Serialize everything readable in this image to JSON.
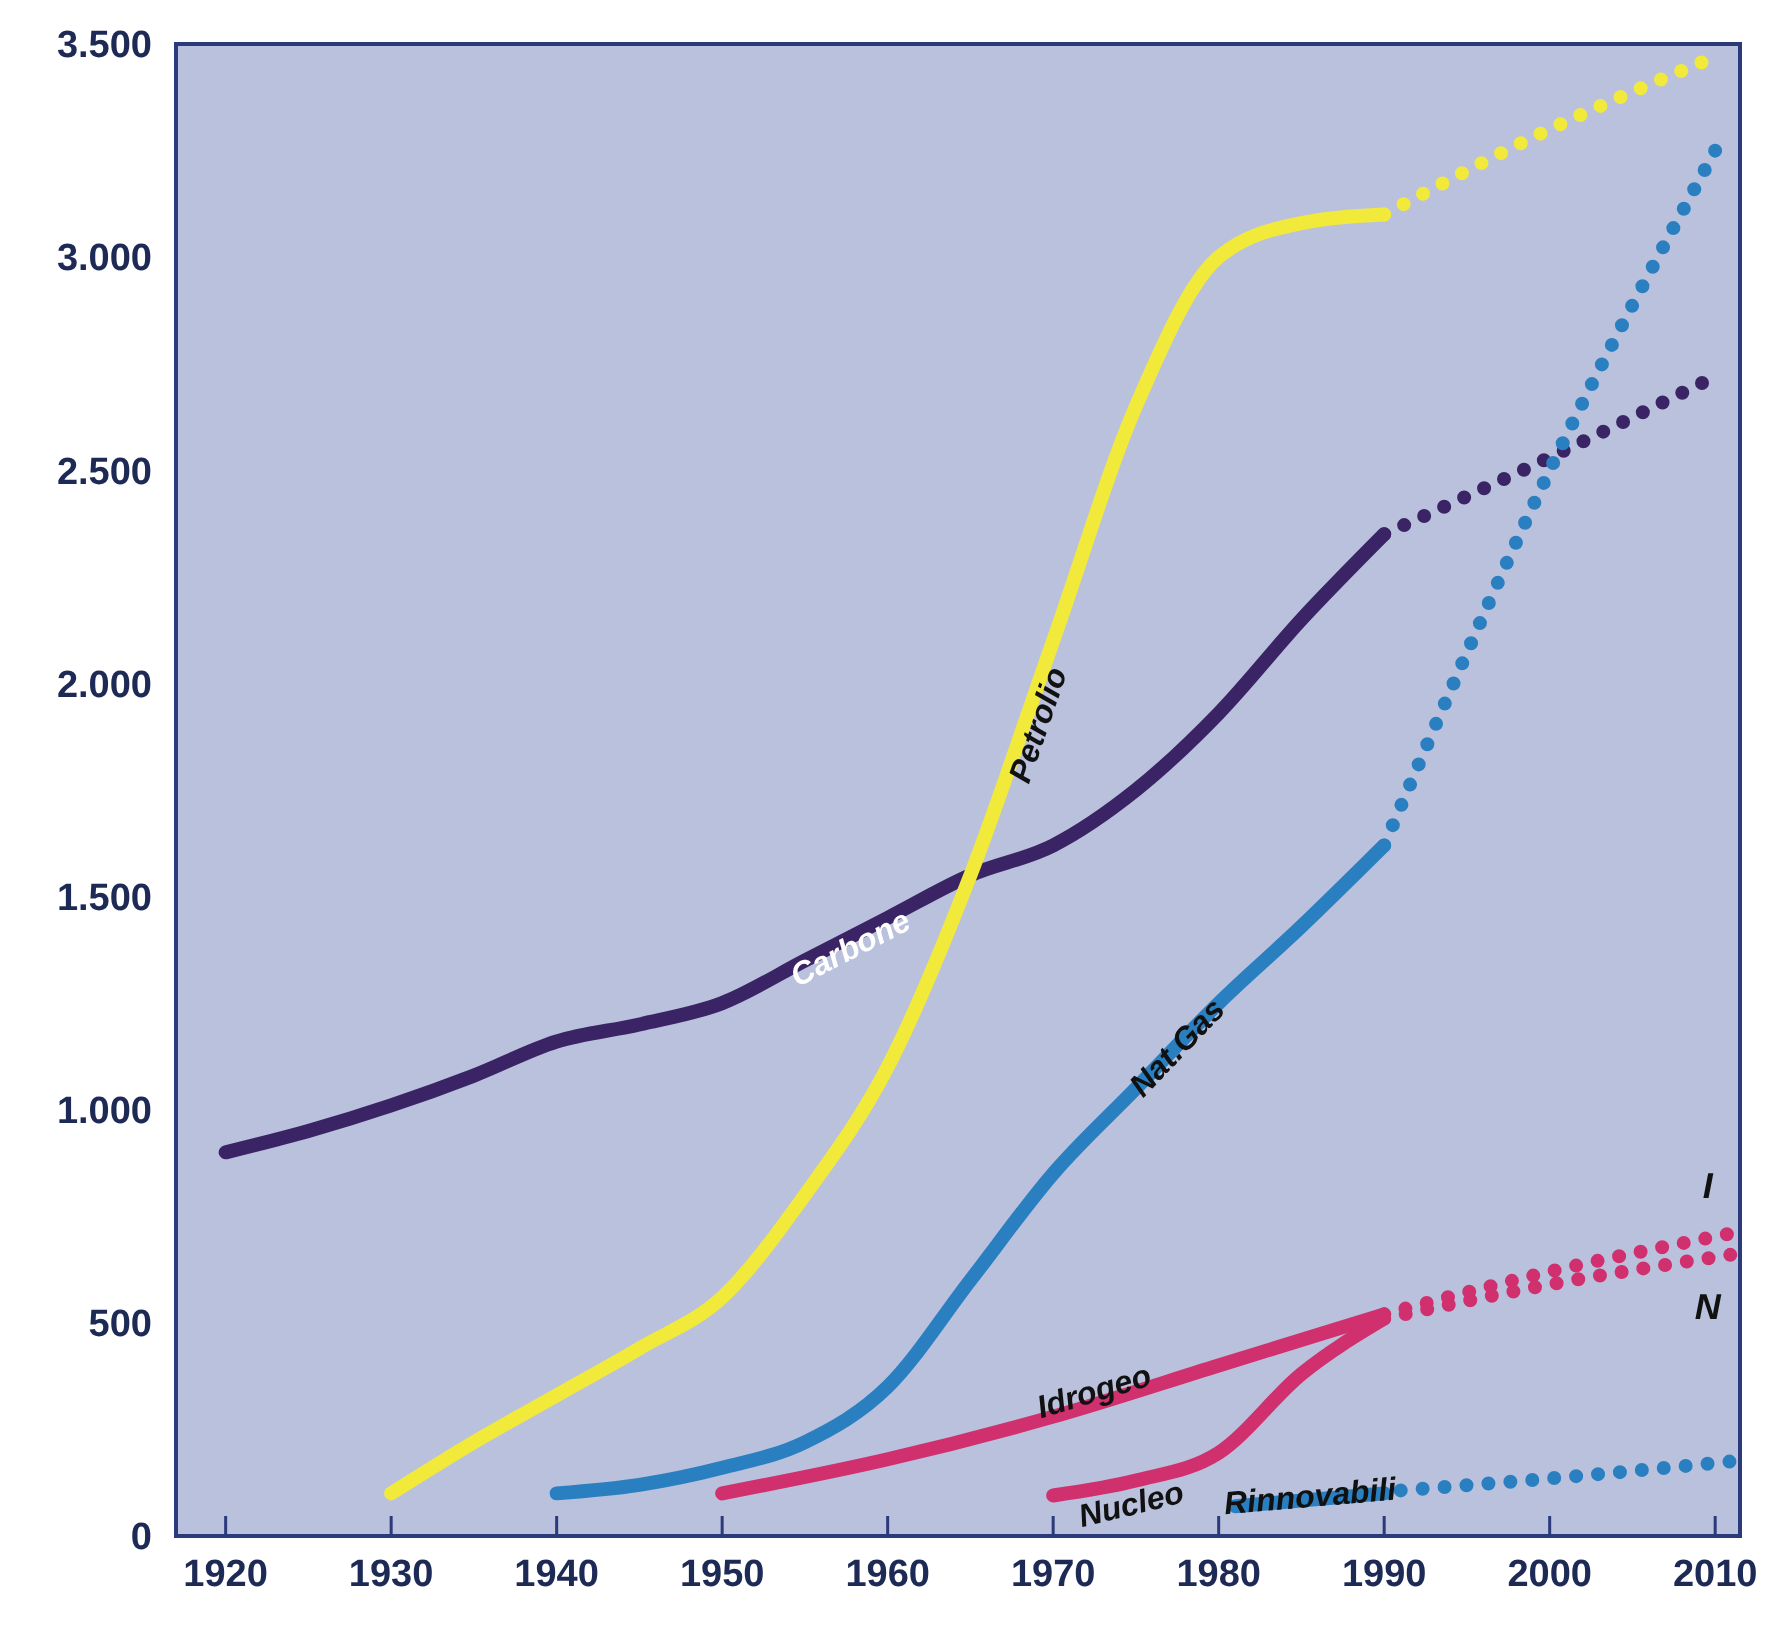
{
  "chart_data": {
    "type": "line",
    "xlim": [
      1917,
      2011.5
    ],
    "xticks": [
      1920,
      1930,
      1940,
      1950,
      1960,
      1970,
      1980,
      1990,
      2000,
      2010
    ],
    "ylim": [
      0,
      3500
    ],
    "yticks": [
      {
        "value": 0,
        "label": "0"
      },
      {
        "value": 500,
        "label": "500"
      },
      {
        "value": 1000,
        "label": "1.000"
      },
      {
        "value": 1500,
        "label": "1.500"
      },
      {
        "value": 2000,
        "label": "2.000"
      },
      {
        "value": 2500,
        "label": "2.500"
      },
      {
        "value": 3000,
        "label": "3.000"
      },
      {
        "value": 3500,
        "label": "3.500"
      }
    ],
    "grid": false,
    "line_style": "solid",
    "marker": "none",
    "series": [
      {
        "name": "Carbone",
        "color": "#3b2466",
        "x": [
          1920,
          1925,
          1930,
          1935,
          1940,
          1945,
          1950,
          1955,
          1960,
          1965,
          1970,
          1975,
          1980,
          1985,
          1990
        ],
        "values": [
          900,
          950,
          1010,
          1080,
          1160,
          1200,
          1250,
          1350,
          1450,
          1550,
          1620,
          1750,
          1930,
          2150,
          2350
        ]
      },
      {
        "color": "#3b2466",
        "line_style": "dotted",
        "x": [
          1990,
          2000,
          2010
        ],
        "values": [
          2350,
          2530,
          2720
        ]
      },
      {
        "name": "Petrolio",
        "color": "#f2ea3a",
        "x": [
          1930,
          1935,
          1940,
          1945,
          1950,
          1955,
          1960,
          1965,
          1970,
          1975,
          1980,
          1985,
          1990
        ],
        "values": [
          100,
          220,
          330,
          440,
          560,
          800,
          1100,
          1550,
          2100,
          2650,
          3000,
          3080,
          3100
        ]
      },
      {
        "color": "#f2ea3a",
        "line_style": "dotted",
        "x": [
          1990,
          2000,
          2010
        ],
        "values": [
          3100,
          3300,
          3470
        ]
      },
      {
        "name": "Nat.Gas",
        "color": "#2a7fc0",
        "x": [
          1940,
          1945,
          1950,
          1955,
          1960,
          1965,
          1970,
          1975,
          1980,
          1985,
          1990
        ],
        "values": [
          100,
          120,
          160,
          220,
          350,
          600,
          850,
          1050,
          1250,
          1430,
          1620
        ]
      },
      {
        "color": "#2a7fc0",
        "line_style": "dotted",
        "x": [
          1990,
          2000,
          2010
        ],
        "values": [
          1620,
          2500,
          3250
        ]
      },
      {
        "name": "Idrogeo",
        "color": "#d0306e",
        "x": [
          1950,
          1960,
          1970,
          1980,
          1990
        ],
        "values": [
          100,
          180,
          280,
          400,
          520
        ]
      },
      {
        "color": "#d0306e",
        "line_style": "dotted",
        "x": [
          1990,
          2000,
          2011
        ],
        "values": [
          520,
          620,
          710
        ]
      },
      {
        "name": "Nucleo",
        "color": "#d0306e",
        "x": [
          1970,
          1975,
          1980,
          1985,
          1990
        ],
        "values": [
          95,
          130,
          195,
          380,
          510
        ]
      },
      {
        "color": "#d0306e",
        "line_style": "dotted",
        "x": [
          1990,
          2000,
          2011
        ],
        "values": [
          510,
          590,
          660
        ]
      },
      {
        "name": "Rinnovabili",
        "color": "#2a7fc0",
        "x": [
          1981,
          1990
        ],
        "values": [
          70,
          100
        ]
      },
      {
        "color": "#2a7fc0",
        "line_style": "dotted",
        "x": [
          1991,
          2000,
          2011
        ],
        "values": [
          107,
          135,
          175
        ]
      }
    ],
    "annotations": [
      "I",
      "N"
    ]
  }
}
